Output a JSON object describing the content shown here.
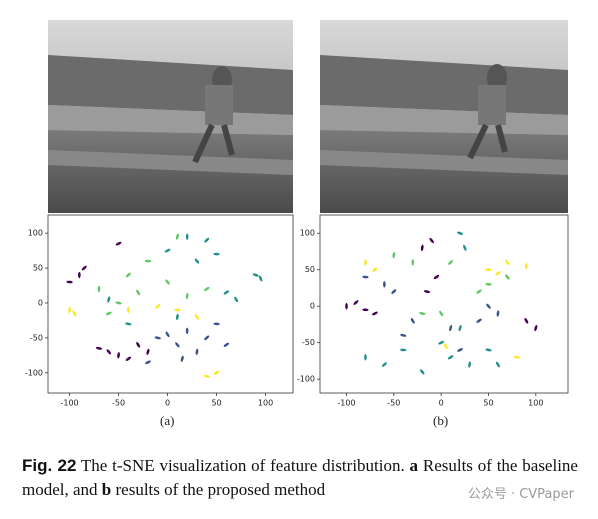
{
  "chart_data": [
    {
      "type": "scatter",
      "xlim": [
        -122,
        128
      ],
      "ylim": [
        -129,
        126
      ],
      "xticks": [
        -100,
        -50,
        0,
        50,
        100
      ],
      "yticks": [
        100,
        50,
        0,
        -50,
        -100
      ],
      "series": [
        {
          "color": "#440154",
          "x": [
            -90,
            -85,
            -100,
            -60,
            -50,
            -40,
            -70,
            -30,
            -20,
            -50
          ],
          "values": [
            40,
            50,
            30,
            -70,
            -75,
            -80,
            -65,
            -60,
            -70,
            85
          ]
        },
        {
          "color": "#3b528b",
          "x": [
            20,
            40,
            50,
            10,
            30,
            60,
            -10,
            0,
            15,
            -20
          ],
          "values": [
            -40,
            -50,
            -30,
            -60,
            -70,
            -60,
            -50,
            -45,
            -80,
            -85
          ]
        },
        {
          "color": "#21918c",
          "x": [
            20,
            40,
            50,
            30,
            10,
            60,
            -40,
            70,
            -60,
            0,
            90,
            95
          ],
          "values": [
            95,
            90,
            70,
            60,
            -20,
            15,
            -30,
            5,
            5,
            75,
            40,
            35
          ]
        },
        {
          "color": "#5ec962",
          "x": [
            -70,
            -40,
            -20,
            0,
            20,
            40,
            -50,
            -30,
            10,
            -60
          ],
          "values": [
            20,
            40,
            60,
            30,
            10,
            20,
            0,
            15,
            95,
            -15
          ]
        },
        {
          "color": "#fde725",
          "x": [
            -40,
            -10,
            10,
            30,
            -100,
            50,
            40,
            -95
          ],
          "values": [
            -10,
            -5,
            -10,
            -20,
            -10,
            -100,
            -105,
            -15
          ]
        }
      ]
    },
    {
      "type": "scatter",
      "xlim": [
        -128,
        134
      ],
      "ylim": [
        -119,
        125
      ],
      "xticks": [
        -100,
        -50,
        0,
        50,
        100
      ],
      "yticks": [
        100,
        50,
        0,
        -50,
        -100
      ],
      "series": [
        {
          "color": "#440154",
          "x": [
            -100,
            -90,
            -80,
            -10,
            -20,
            -5,
            -15,
            90,
            100,
            -70
          ],
          "values": [
            0,
            5,
            -5,
            90,
            80,
            40,
            20,
            -20,
            -30,
            -10
          ]
        },
        {
          "color": "#3b528b",
          "x": [
            -60,
            -50,
            -80,
            50,
            60,
            40,
            -40,
            -30,
            10,
            20
          ],
          "values": [
            30,
            20,
            40,
            0,
            -10,
            -20,
            -40,
            -20,
            -30,
            -60
          ]
        },
        {
          "color": "#21918c",
          "x": [
            -80,
            -60,
            -40,
            -20,
            30,
            10,
            50,
            60,
            20,
            0,
            20,
            25
          ],
          "values": [
            -70,
            -80,
            -60,
            -90,
            -80,
            -70,
            -60,
            -80,
            -30,
            -50,
            100,
            80
          ]
        },
        {
          "color": "#5ec962",
          "x": [
            -30,
            10,
            50,
            70,
            -50,
            40,
            -20,
            0
          ],
          "values": [
            60,
            60,
            30,
            40,
            70,
            20,
            -10,
            -10
          ]
        },
        {
          "color": "#fde725",
          "x": [
            -80,
            -70,
            50,
            70,
            90,
            60,
            80,
            5
          ],
          "values": [
            60,
            50,
            50,
            60,
            55,
            45,
            -70,
            -55
          ]
        }
      ]
    }
  ],
  "panels": [
    "(a)",
    "(b)"
  ],
  "caption": {
    "label": "Fig. 22",
    "parts": [
      "  The t-SNE visualization of feature distribution. ",
      "a",
      " Results of the baseline model, and ",
      "b",
      " results of the proposed method"
    ]
  },
  "watermark": "公众号 · CVPaper"
}
